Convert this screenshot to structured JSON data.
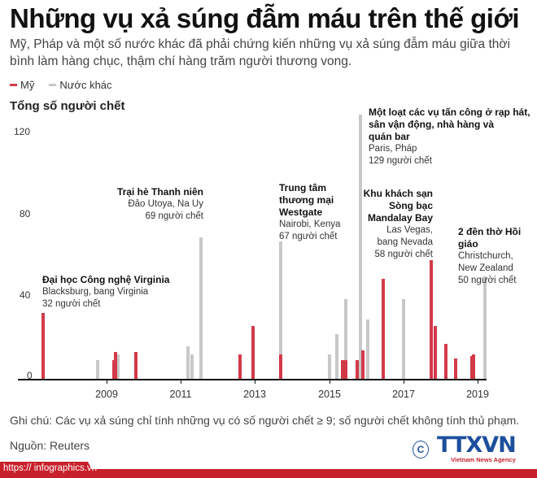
{
  "header": {
    "title": "Những vụ xả súng đẫm máu trên thế giới",
    "subtitle": "Mỹ, Pháp và một số nước khác đã phải chứng kiến những vụ xả súng đẫm máu giữa thời bình làm hàng chục, thậm chí hàng trăm người thương vong."
  },
  "legend": [
    {
      "label": "Mỹ",
      "color": "#d23a4a"
    },
    {
      "label": "Nước khác",
      "color": "#c8c8c8"
    }
  ],
  "colors": {
    "us": "#d23a4a",
    "other": "#c8c8c8",
    "brand_red": "#c8202b",
    "brand_blue": "#1d4f9c"
  },
  "chart_data": {
    "type": "bar",
    "title": "Những vụ xả súng đẫm máu trên thế giới",
    "ylabel": "Tổng số người chết",
    "xlabel": "",
    "ylim": [
      0,
      120
    ],
    "yticks": [
      "0",
      "40",
      "80",
      "120"
    ],
    "xticks": [
      "2009",
      "2011",
      "2013",
      "2015",
      "2017",
      "2019"
    ],
    "grid": false,
    "legend_position": "top-left",
    "series": [
      {
        "name": "Mỹ",
        "points": [
          {
            "year": 2007.3,
            "value": 32
          },
          {
            "year": 2009.2,
            "value": 9
          },
          {
            "year": 2009.25,
            "value": 13
          },
          {
            "year": 2009.8,
            "value": 13
          },
          {
            "year": 2012.6,
            "value": 12
          },
          {
            "year": 2012.95,
            "value": 26
          },
          {
            "year": 2013.7,
            "value": 12
          },
          {
            "year": 2015.35,
            "value": 9
          },
          {
            "year": 2015.45,
            "value": 9
          },
          {
            "year": 2015.75,
            "value": 9
          },
          {
            "year": 2015.9,
            "value": 14
          },
          {
            "year": 2016.45,
            "value": 49
          },
          {
            "year": 2017.75,
            "value": 58
          },
          {
            "year": 2017.85,
            "value": 26
          },
          {
            "year": 2018.15,
            "value": 17
          },
          {
            "year": 2018.4,
            "value": 10
          },
          {
            "year": 2018.85,
            "value": 11
          },
          {
            "year": 2018.9,
            "value": 12
          }
        ]
      },
      {
        "name": "Nước khác",
        "points": [
          {
            "year": 2008.75,
            "value": 9
          },
          {
            "year": 2009.3,
            "value": 12
          },
          {
            "year": 2011.2,
            "value": 16
          },
          {
            "year": 2011.3,
            "value": 12
          },
          {
            "year": 2011.55,
            "value": 69
          },
          {
            "year": 2013.7,
            "value": 67
          },
          {
            "year": 2015.0,
            "value": 12
          },
          {
            "year": 2015.2,
            "value": 22
          },
          {
            "year": 2015.45,
            "value": 39
          },
          {
            "year": 2015.85,
            "value": 129
          },
          {
            "year": 2016.05,
            "value": 29
          },
          {
            "year": 2017.0,
            "value": 39
          },
          {
            "year": 2019.2,
            "value": 50
          }
        ]
      }
    ],
    "annotations": [
      {
        "title": "Đại học Công nghệ Virginia",
        "place": "Blacksburg, bang Virginia",
        "deaths": "32 người chết"
      },
      {
        "title": "Trại hè Thanh niên",
        "place": "Đảo Utoya, Na Uy",
        "deaths": "69 người chết"
      },
      {
        "title": "Trung tâm thương mại Westgate",
        "place": "Nairobi, Kenya",
        "deaths": "67 người chết"
      },
      {
        "title": "Một loạt các vụ tấn công ở rạp hát, sân vận động, nhà hàng và quán bar",
        "place": "Paris, Pháp",
        "deaths": "129 người chết"
      },
      {
        "title": "Khu khách sạn Sòng bạc Mandalay Bay",
        "place": "Las Vegas, bang Nevada",
        "deaths": "58 người chết"
      },
      {
        "title": "2 đền thờ Hồi giáo",
        "place": "Christchurch, New Zealand",
        "deaths": "50 người chết"
      }
    ]
  },
  "annotations": {
    "virginia": {
      "t1": "Đại học Công nghệ Virginia",
      "p1": "Blacksburg, bang Virginia",
      "d": "32 người chết"
    },
    "utoya": {
      "t1": "Trại hè Thanh niên",
      "p1": "Đảo Utoya, Na Uy",
      "d": "69 người chết"
    },
    "westgate": {
      "t1": "Trung tâm",
      "t2": "thương mại",
      "t3": "Westgate",
      "p1": "Nairobi, Kenya",
      "d": "67 người chết"
    },
    "paris": {
      "t1": "Một loạt các vụ tấn công ở rạp hát,",
      "t2": "sân vận động, nhà hàng và",
      "t3": "quán bar",
      "p1": "Paris, Pháp",
      "d": "129 người chết"
    },
    "vegas": {
      "t1": "Khu khách sạn",
      "t2": "Sòng bạc",
      "t3": "Mandalay Bay",
      "p1": "Las Vegas,",
      "p2": "bang Nevada",
      "d": "58 người chết"
    },
    "christchurch": {
      "t1": "2 đền thờ Hồi giáo",
      "p1": "Christchurch,",
      "p2": "New Zealand",
      "d": "50 người chết"
    }
  },
  "footer": {
    "note": "Ghi chú: Các vụ xả súng chỉ tính những vụ có số người chết ≥ 9; số người chết không tính thủ phạm.",
    "source": "Nguồn: Reuters",
    "url": "https:// infographics.vn",
    "logo_text": "TTXVN",
    "logo_sub": "Vietnam News Agency",
    "copyright": "C"
  }
}
